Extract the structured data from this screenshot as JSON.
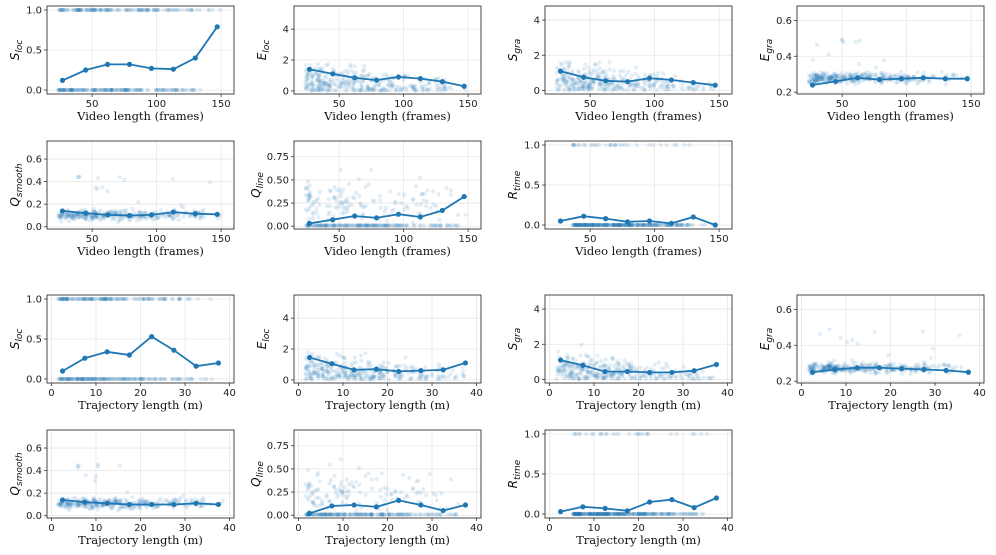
{
  "styles": {
    "marker_color": "#1f77b4",
    "cloud_color": "#1f77b4",
    "axis_color": "#333333",
    "grid_color": "#e6e6e6"
  },
  "chart_data": [
    {
      "type": "scatter",
      "title": "",
      "var": "S",
      "sub": "loc",
      "xlabel": "Video length (frames)",
      "xlim": [
        15,
        160
      ],
      "ylim": [
        -0.05,
        1.05
      ],
      "xticks": [
        50,
        100,
        150
      ],
      "yticks": [
        0.0,
        0.5,
        1.0
      ],
      "ytick_labels": [
        "0.0",
        "0.5",
        "1.0"
      ],
      "cloud": "binary",
      "x": [
        27,
        45,
        62,
        79,
        96,
        113,
        130,
        147
      ],
      "y": [
        0.12,
        0.25,
        0.32,
        0.32,
        0.27,
        0.26,
        0.4,
        0.79
      ]
    },
    {
      "type": "scatter",
      "title": "",
      "var": "E",
      "sub": "loc",
      "xlabel": "Video length (frames)",
      "xlim": [
        15,
        160
      ],
      "ylim": [
        -0.2,
        5.5
      ],
      "xticks": [
        50,
        100,
        150
      ],
      "yticks": [
        0,
        2,
        4
      ],
      "ytick_labels": [
        "0",
        "2",
        "4"
      ],
      "cloud": "decay",
      "x": [
        27,
        45,
        62,
        79,
        96,
        113,
        130,
        147
      ],
      "y": [
        1.4,
        1.1,
        0.85,
        0.7,
        0.9,
        0.8,
        0.6,
        0.3
      ]
    },
    {
      "type": "scatter",
      "title": "",
      "var": "S",
      "sub": "gra",
      "xlabel": "Video length (frames)",
      "xlim": [
        15,
        160
      ],
      "ylim": [
        -0.2,
        4.8
      ],
      "xticks": [
        50,
        100,
        150
      ],
      "yticks": [
        0,
        2,
        4
      ],
      "ytick_labels": [
        "0",
        "2",
        "4"
      ],
      "cloud": "decay",
      "x": [
        27,
        45,
        62,
        79,
        96,
        113,
        130,
        147
      ],
      "y": [
        1.1,
        0.75,
        0.55,
        0.5,
        0.7,
        0.6,
        0.45,
        0.3
      ]
    },
    {
      "type": "scatter",
      "title": "",
      "var": "E",
      "sub": "gra",
      "xlabel": "Video length (frames)",
      "xlim": [
        15,
        160
      ],
      "ylim": [
        0.19,
        0.68
      ],
      "xticks": [
        50,
        100,
        150
      ],
      "yticks": [
        0.2,
        0.4,
        0.6
      ],
      "ytick_labels": [
        "0.2",
        "0.4",
        "0.6"
      ],
      "cloud": "band",
      "x": [
        27,
        45,
        62,
        79,
        96,
        113,
        130,
        147
      ],
      "y": [
        0.24,
        0.26,
        0.28,
        0.27,
        0.275,
        0.28,
        0.275,
        0.275
      ]
    },
    {
      "type": "scatter",
      "title": "",
      "var": "Q",
      "sub": "smooth",
      "xlabel": "Video length (frames)",
      "xlim": [
        15,
        160
      ],
      "ylim": [
        -0.02,
        0.76
      ],
      "xticks": [
        50,
        100,
        150
      ],
      "yticks": [
        0.0,
        0.2,
        0.4,
        0.6
      ],
      "ytick_labels": [
        "0.0",
        "0.2",
        "0.4",
        "0.6"
      ],
      "cloud": "band",
      "x": [
        27,
        45,
        62,
        79,
        96,
        113,
        130,
        147
      ],
      "y": [
        0.14,
        0.12,
        0.105,
        0.1,
        0.105,
        0.13,
        0.115,
        0.11
      ]
    },
    {
      "type": "scatter",
      "title": "",
      "var": "Q",
      "sub": "line",
      "xlabel": "Video length (frames)",
      "xlim": [
        15,
        160
      ],
      "ylim": [
        -0.03,
        0.92
      ],
      "xticks": [
        50,
        100,
        150
      ],
      "yticks": [
        0.0,
        0.25,
        0.5,
        0.75
      ],
      "ytick_labels": [
        "0.00",
        "0.25",
        "0.50",
        "0.75"
      ],
      "cloud": "zero_spread",
      "x": [
        27,
        45,
        62,
        79,
        96,
        113,
        130,
        147
      ],
      "y": [
        0.03,
        0.07,
        0.11,
        0.09,
        0.13,
        0.1,
        0.17,
        0.32
      ]
    },
    {
      "type": "scatter",
      "title": "",
      "var": "R",
      "sub": "time",
      "xlabel": "Video length (frames)",
      "xlim": [
        15,
        160
      ],
      "ylim": [
        -0.05,
        1.05
      ],
      "xticks": [
        50,
        100,
        150
      ],
      "yticks": [
        0.0,
        0.5,
        1.0
      ],
      "ytick_labels": [
        "0.0",
        "0.5",
        "1.0"
      ],
      "cloud": "binary_low",
      "x": [
        27,
        45,
        62,
        79,
        96,
        113,
        130,
        147
      ],
      "y": [
        0.05,
        0.11,
        0.08,
        0.04,
        0.05,
        0.02,
        0.1,
        0.0
      ]
    },
    {
      "type": "scatter",
      "title": "",
      "var": "S",
      "sub": "loc",
      "xlabel": "Trajectory length (m)",
      "xlim": [
        -1,
        41
      ],
      "ylim": [
        -0.05,
        1.05
      ],
      "xticks": [
        0,
        10,
        20,
        30,
        40
      ],
      "yticks": [
        0.0,
        0.5,
        1.0
      ],
      "ytick_labels": [
        "0.0",
        "0.5",
        "1.0"
      ],
      "cloud": "binary",
      "x": [
        2.5,
        7.5,
        12.5,
        17.5,
        22.5,
        27.5,
        32.5,
        37.5
      ],
      "y": [
        0.1,
        0.26,
        0.34,
        0.3,
        0.53,
        0.36,
        0.16,
        0.2
      ]
    },
    {
      "type": "scatter",
      "title": "",
      "var": "E",
      "sub": "loc",
      "xlabel": "Trajectory length (m)",
      "xlim": [
        -1,
        41
      ],
      "ylim": [
        -0.2,
        5.5
      ],
      "xticks": [
        0,
        10,
        20,
        30,
        40
      ],
      "yticks": [
        0,
        2,
        4
      ],
      "ytick_labels": [
        "0",
        "2",
        "4"
      ],
      "cloud": "decay",
      "x": [
        2.5,
        7.5,
        12.5,
        17.5,
        22.5,
        27.5,
        32.5,
        37.5
      ],
      "y": [
        1.45,
        1.05,
        0.65,
        0.7,
        0.55,
        0.6,
        0.65,
        1.1
      ]
    },
    {
      "type": "scatter",
      "title": "",
      "var": "S",
      "sub": "gra",
      "xlabel": "Trajectory length (m)",
      "xlim": [
        -1,
        41
      ],
      "ylim": [
        -0.2,
        4.8
      ],
      "xticks": [
        0,
        10,
        20,
        30,
        40
      ],
      "yticks": [
        0,
        2,
        4
      ],
      "ytick_labels": [
        "0",
        "2",
        "4"
      ],
      "cloud": "decay",
      "x": [
        2.5,
        7.5,
        12.5,
        17.5,
        22.5,
        27.5,
        32.5,
        37.5
      ],
      "y": [
        1.1,
        0.8,
        0.45,
        0.45,
        0.4,
        0.4,
        0.5,
        0.85
      ]
    },
    {
      "type": "scatter",
      "title": "",
      "var": "E",
      "sub": "gra",
      "xlabel": "Trajectory length (m)",
      "xlim": [
        -1,
        41
      ],
      "ylim": [
        0.19,
        0.68
      ],
      "xticks": [
        0,
        10,
        20,
        30,
        40
      ],
      "yticks": [
        0.2,
        0.4,
        0.6
      ],
      "ytick_labels": [
        "0.2",
        "0.4",
        "0.6"
      ],
      "cloud": "band",
      "x": [
        2.5,
        7.5,
        12.5,
        17.5,
        22.5,
        27.5,
        32.5,
        37.5
      ],
      "y": [
        0.25,
        0.265,
        0.275,
        0.275,
        0.27,
        0.265,
        0.26,
        0.25
      ]
    },
    {
      "type": "scatter",
      "title": "",
      "var": "Q",
      "sub": "smooth",
      "xlabel": "Trajectory length (m)",
      "xlim": [
        -1,
        41
      ],
      "ylim": [
        -0.02,
        0.76
      ],
      "xticks": [
        0,
        10,
        20,
        30,
        40
      ],
      "yticks": [
        0.0,
        0.2,
        0.4,
        0.6
      ],
      "ytick_labels": [
        "0.0",
        "0.2",
        "0.4",
        "0.6"
      ],
      "cloud": "band",
      "x": [
        2.5,
        7.5,
        12.5,
        17.5,
        22.5,
        27.5,
        32.5,
        37.5
      ],
      "y": [
        0.14,
        0.12,
        0.11,
        0.1,
        0.1,
        0.1,
        0.11,
        0.1
      ]
    },
    {
      "type": "scatter",
      "title": "",
      "var": "Q",
      "sub": "line",
      "xlabel": "Trajectory length (m)",
      "xlim": [
        -1,
        41
      ],
      "ylim": [
        -0.03,
        0.92
      ],
      "xticks": [
        0,
        10,
        20,
        30,
        40
      ],
      "yticks": [
        0.0,
        0.25,
        0.5,
        0.75
      ],
      "ytick_labels": [
        "0.00",
        "0.25",
        "0.50",
        "0.75"
      ],
      "cloud": "zero_spread",
      "x": [
        2.5,
        7.5,
        12.5,
        17.5,
        22.5,
        27.5,
        32.5,
        37.5
      ],
      "y": [
        0.02,
        0.1,
        0.11,
        0.09,
        0.16,
        0.11,
        0.05,
        0.11
      ]
    },
    {
      "type": "scatter",
      "title": "",
      "var": "R",
      "sub": "time",
      "xlabel": "Trajectory length (m)",
      "xlim": [
        -1,
        41
      ],
      "ylim": [
        -0.05,
        1.05
      ],
      "xticks": [
        0,
        10,
        20,
        30,
        40
      ],
      "yticks": [
        0.0,
        0.5,
        1.0
      ],
      "ytick_labels": [
        "0.0",
        "0.5",
        "1.0"
      ],
      "cloud": "binary_low",
      "x": [
        2.5,
        7.5,
        12.5,
        17.5,
        22.5,
        27.5,
        32.5,
        37.5
      ],
      "y": [
        0.03,
        0.09,
        0.07,
        0.04,
        0.15,
        0.18,
        0.08,
        0.2
      ]
    }
  ]
}
